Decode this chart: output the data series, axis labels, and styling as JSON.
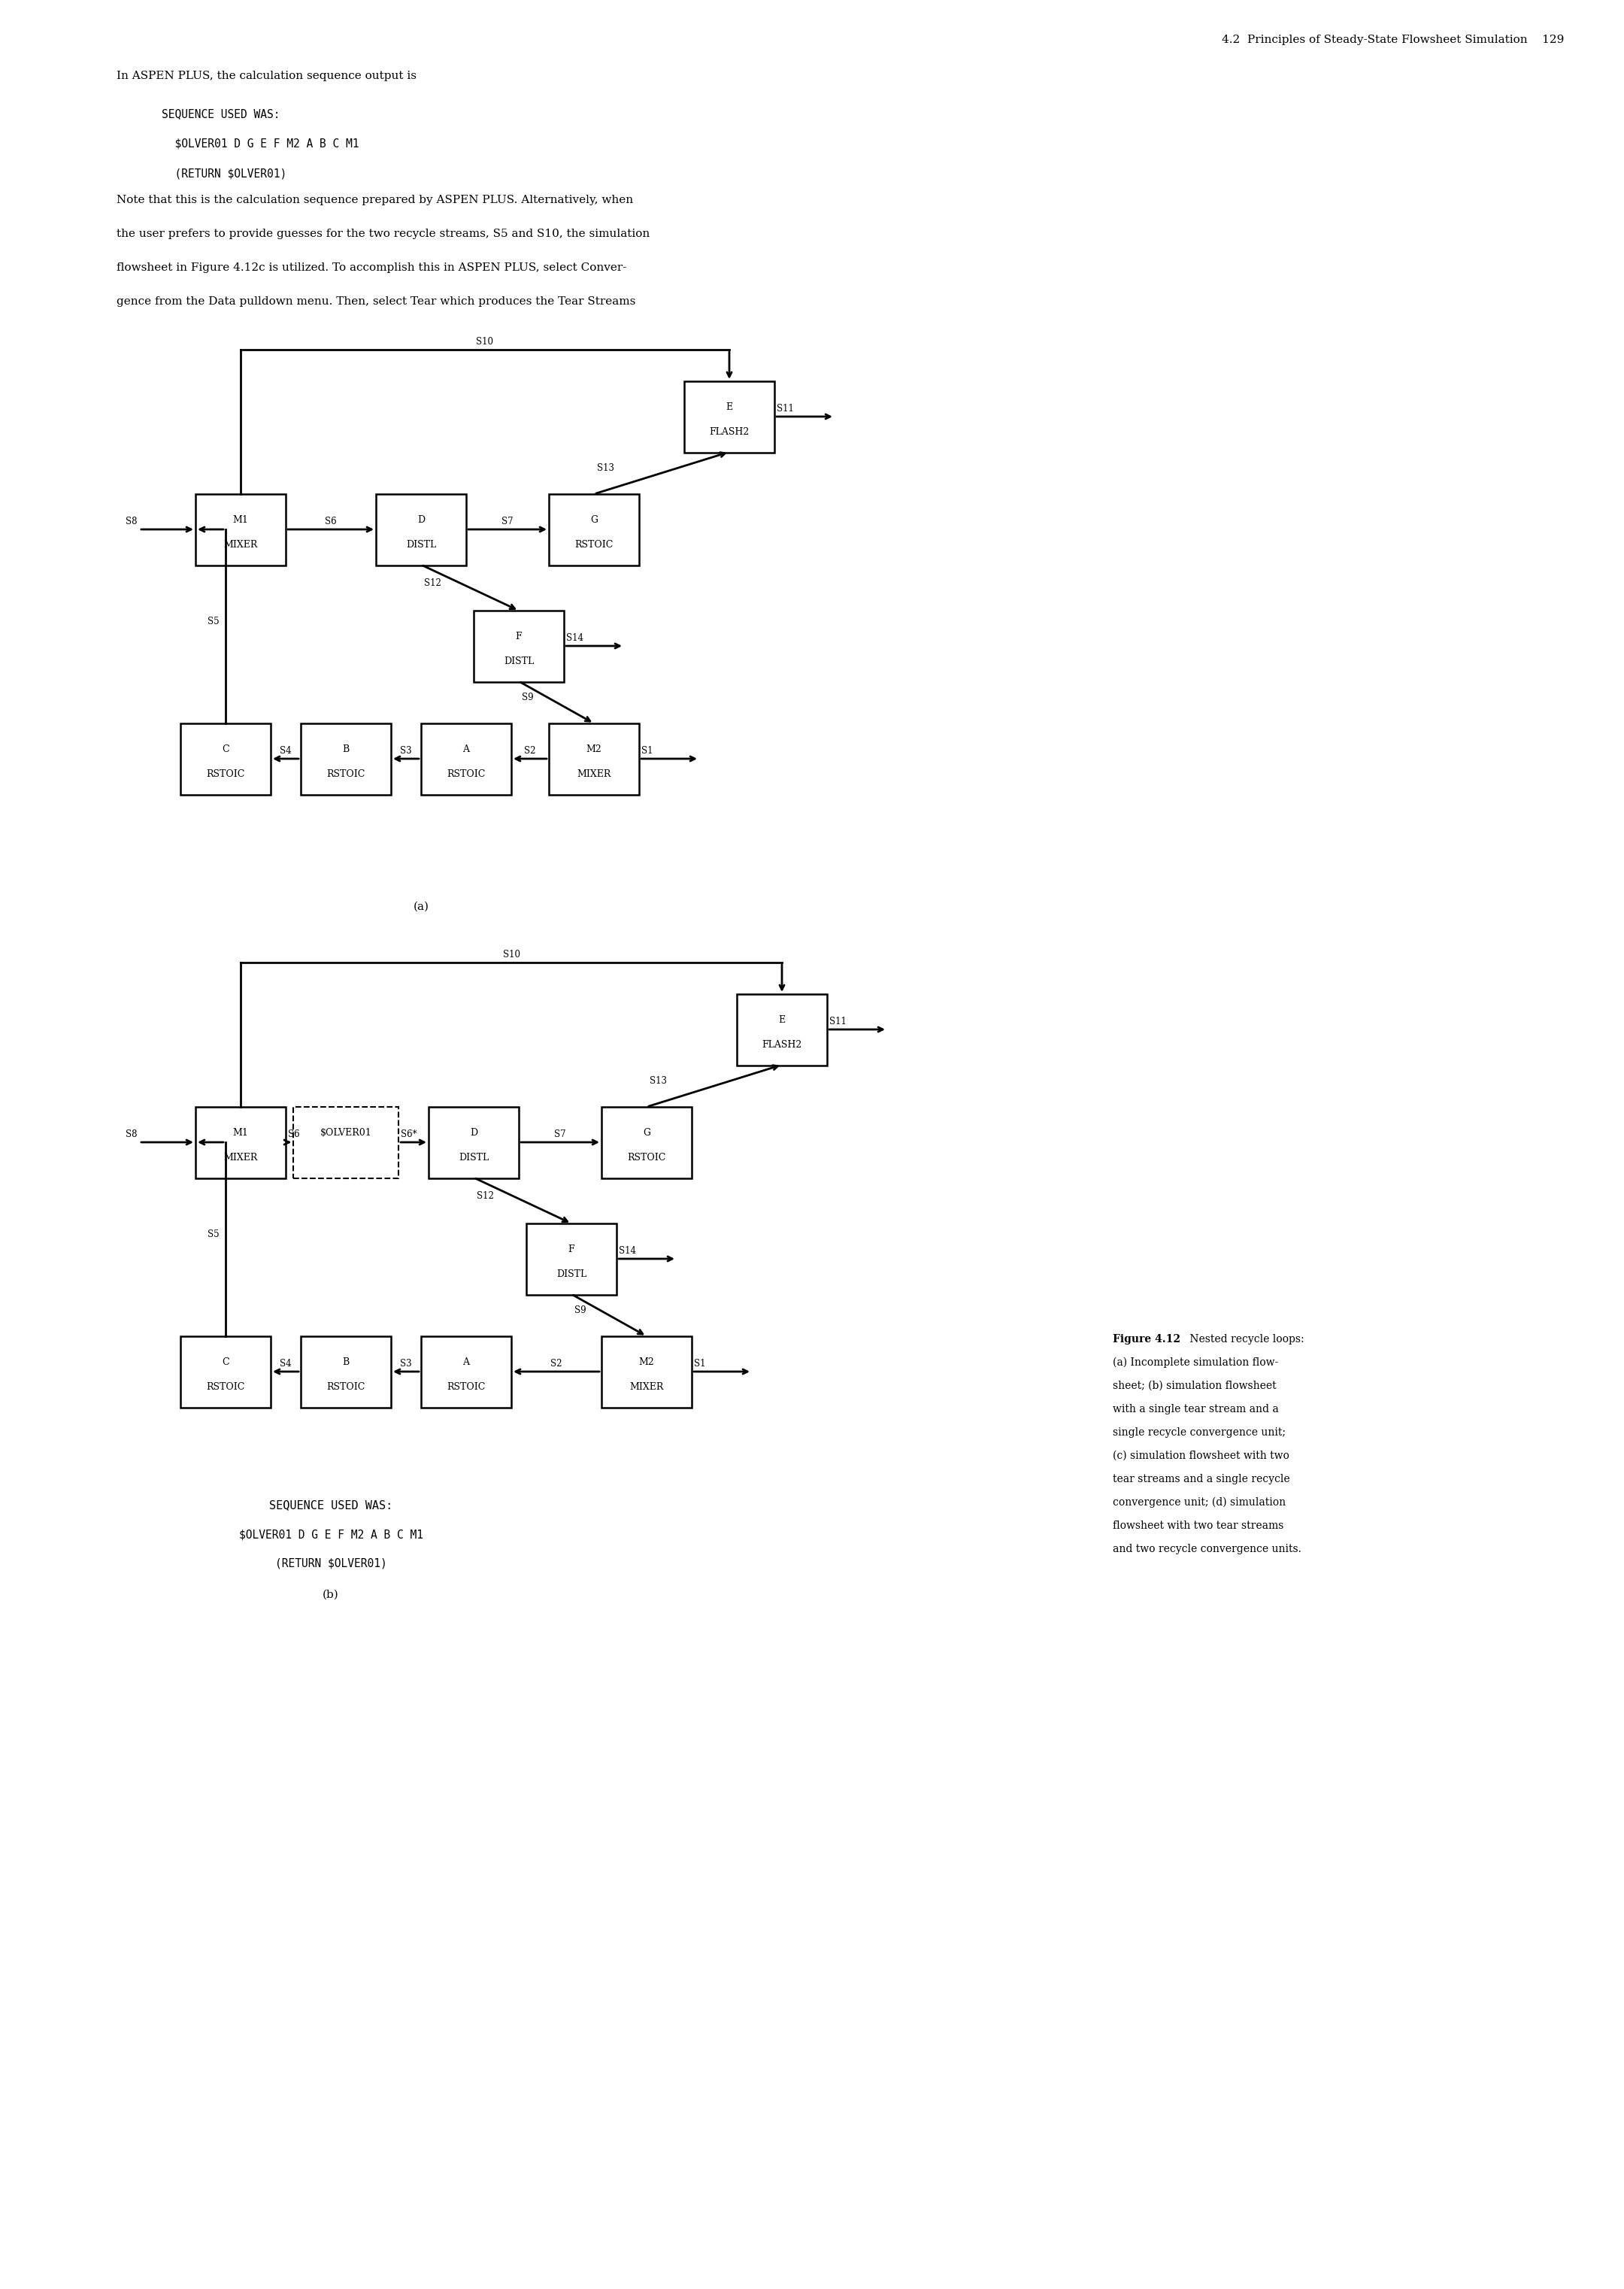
{
  "page_header": "4.2  Principles of Steady-State Flowsheet Simulation    129",
  "intro_text": "In ASPEN PLUS, the calculation sequence output is",
  "code_a_lines": [
    "SEQUENCE USED WAS:",
    "  $OLVER01 D G E F M2 A B C M1",
    "  (RETURN $OLVER01)"
  ],
  "body_lines": [
    "Note that this is the calculation sequence prepared by ASPEN PLUS. Alternatively, when",
    "the user prefers to provide guesses for the two recycle streams, S5 and S10, the simulation",
    "flowsheet in Figure 4.12c is utilized. To accomplish this in ASPEN PLUS, select Conver-",
    "gence from the Data pulldown menu. Then, select Tear which produces the Tear Streams"
  ],
  "code_b_lines": [
    "SEQUENCE USED WAS:",
    "$OLVER01 D G E F M2 A B C M1",
    "(RETURN $OLVER01)"
  ],
  "caption_bold": "Figure 4.12",
  "caption_rest": " Nested recycle loops:",
  "caption_lines": [
    "(a) Incomplete simulation flow-",
    "sheet; (b) simulation flowsheet",
    "with a single tear stream and a",
    "single recycle convergence unit;",
    "(c) simulation flowsheet with two",
    "tear streams and a single recycle",
    "convergence unit; (d) simulation",
    "flowsheet with two tear streams",
    "and two recycle convergence units."
  ],
  "bg_color": "#ffffff"
}
